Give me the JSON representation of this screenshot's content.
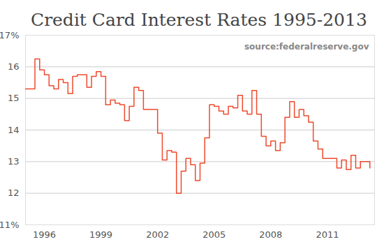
{
  "chart_data": {
    "type": "line",
    "title": "Credit Card Interest Rates 1995-2013",
    "annotations": [
      "source:federalreserve.gov"
    ],
    "line_style": "step",
    "color": "#ee4a2c",
    "grid": true,
    "x": [
      1995,
      1995.25,
      1995.5,
      1995.75,
      1996,
      1996.25,
      1996.5,
      1996.75,
      1997,
      1997.25,
      1997.5,
      1997.75,
      1998,
      1998.25,
      1998.5,
      1998.75,
      1999,
      1999.25,
      1999.5,
      1999.75,
      2000,
      2000.25,
      2000.5,
      2000.75,
      2001,
      2001.25,
      2001.5,
      2001.75,
      2002,
      2002.25,
      2002.5,
      2002.75,
      2003,
      2003.25,
      2003.5,
      2003.75,
      2004,
      2004.25,
      2004.5,
      2004.75,
      2005,
      2005.25,
      2005.5,
      2005.75,
      2006,
      2006.25,
      2006.5,
      2006.75,
      2007,
      2007.25,
      2007.5,
      2007.75,
      2008,
      2008.25,
      2008.5,
      2008.75,
      2009,
      2009.25,
      2009.5,
      2009.75,
      2010,
      2010.25,
      2010.5,
      2010.75,
      2011,
      2011.25,
      2011.5,
      2011.75,
      2012,
      2012.25,
      2012.5,
      2012.75,
      2013,
      2013.25
    ],
    "values": [
      15.3,
      15.3,
      16.25,
      15.9,
      15.75,
      15.4,
      15.3,
      15.6,
      15.5,
      15.15,
      15.7,
      15.75,
      15.75,
      15.35,
      15.7,
      15.85,
      15.7,
      14.8,
      14.95,
      14.85,
      14.8,
      14.3,
      14.75,
      15.35,
      15.25,
      14.65,
      14.65,
      14.65,
      13.9,
      13.05,
      13.35,
      13.3,
      12.0,
      12.7,
      13.1,
      12.9,
      12.4,
      12.95,
      13.75,
      14.8,
      14.75,
      14.6,
      14.5,
      14.75,
      14.7,
      15.1,
      14.6,
      14.5,
      15.25,
      14.5,
      13.8,
      13.5,
      13.65,
      13.35,
      13.6,
      14.4,
      14.9,
      14.4,
      14.65,
      14.45,
      14.25,
      13.65,
      13.4,
      13.1,
      13.1,
      13.1,
      12.8,
      13.05,
      12.75,
      13.2,
      12.8,
      13.0,
      13.0,
      12.8
    ],
    "xlim": [
      1995,
      2013.5
    ],
    "xticks": [
      1996,
      1999,
      2002,
      2005,
      2008,
      2011
    ],
    "ylim": [
      11,
      17
    ],
    "yticks": [
      {
        "value": 11,
        "label": "11%"
      },
      12,
      13,
      14,
      15,
      16,
      {
        "value": 17,
        "label": "17%"
      }
    ]
  }
}
